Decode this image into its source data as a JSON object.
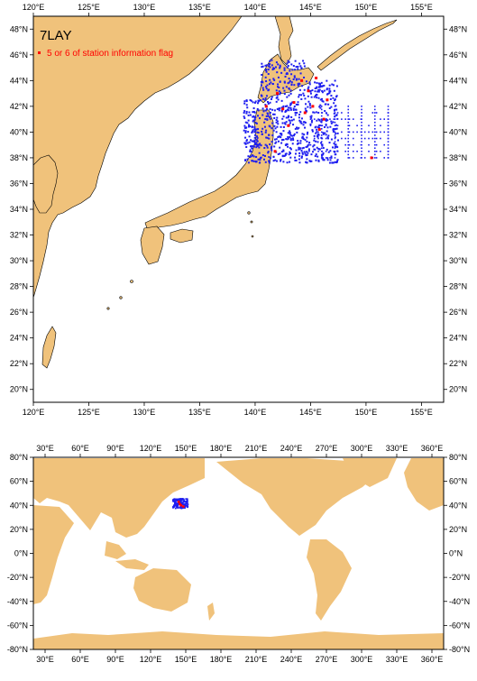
{
  "title": "7LAY",
  "legend": {
    "label": "5 or 6 of station information flag",
    "marker_color": "#ff0000"
  },
  "colors": {
    "land": "#f0c27b",
    "sea": "#ffffff",
    "stations": "#1e1ef0",
    "flagged": "#ff0000",
    "frame": "#000000"
  },
  "regional_map": {
    "lon_range": [
      120,
      157
    ],
    "lat_range": [
      19,
      49
    ],
    "lon_ticks": [
      "120°E",
      "125°E",
      "130°E",
      "135°E",
      "140°E",
      "145°E",
      "150°E",
      "155°E"
    ],
    "lat_ticks": [
      "20°N",
      "22°N",
      "24°N",
      "26°N",
      "28°N",
      "30°N",
      "32°N",
      "34°N",
      "36°N",
      "38°N",
      "40°N",
      "42°N",
      "44°N",
      "46°N",
      "48°N"
    ]
  },
  "global_map": {
    "lon_range": [
      20,
      370
    ],
    "lat_range": [
      -80,
      80
    ],
    "lon_ticks": [
      "30°E",
      "60°E",
      "90°E",
      "120°E",
      "150°E",
      "180°E",
      "210°E",
      "240°E",
      "270°E",
      "300°E",
      "330°E",
      "360°E"
    ],
    "lat_ticks": [
      "80°N",
      "60°N",
      "40°N",
      "20°N",
      "0°N",
      "-20°N",
      "-40°N",
      "-60°N",
      "-80°N"
    ]
  }
}
